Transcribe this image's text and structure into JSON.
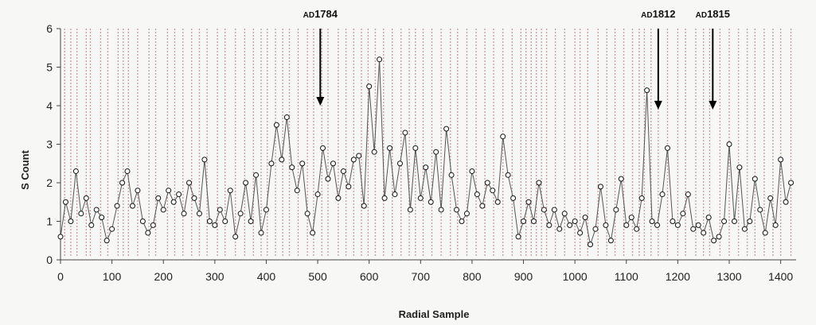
{
  "chart_data": {
    "type": "line",
    "title": "",
    "xlabel": "Radial Sample",
    "ylabel": "S Count",
    "xlim": [
      0,
      1430
    ],
    "ylim": [
      0,
      6
    ],
    "x_ticks": [
      0,
      100,
      200,
      300,
      400,
      500,
      600,
      700,
      800,
      900,
      1000,
      1100,
      1200,
      1300,
      1400
    ],
    "y_ticks": [
      0,
      1,
      2,
      3,
      4,
      5,
      6
    ],
    "grid": false,
    "colors": {
      "line": "#555555",
      "marker_edge": "#111111",
      "marker_fill": "#ffffff",
      "ring_lines": "#c9a0a0",
      "arrow": "#000000"
    },
    "ring_boundaries": [
      8,
      20,
      32,
      50,
      58,
      78,
      92,
      112,
      122,
      132,
      150,
      172,
      185,
      208,
      222,
      238,
      255,
      270,
      285,
      305,
      320,
      340,
      358,
      375,
      390,
      402,
      418,
      432,
      445,
      462,
      480,
      492,
      508,
      520,
      540,
      555,
      570,
      585,
      598,
      612,
      628,
      645,
      662,
      678,
      690,
      705,
      722,
      740,
      758,
      772,
      790,
      808,
      825,
      842,
      860,
      878,
      895,
      905,
      915,
      925,
      935,
      945,
      962,
      980,
      1000,
      1010,
      1025,
      1045,
      1062,
      1078,
      1095,
      1112,
      1125,
      1135,
      1148,
      1162,
      1180,
      1200,
      1215,
      1235,
      1250,
      1262,
      1282,
      1300,
      1318,
      1335,
      1350,
      1368,
      1385,
      1400,
      1420
    ],
    "annotations": [
      {
        "prefix": "AD",
        "year": "1784",
        "x": 505,
        "y": 4.0
      },
      {
        "prefix": "AD",
        "year": "1812",
        "x": 1162,
        "y": 3.9
      },
      {
        "prefix": "AD",
        "year": "1815",
        "x": 1268,
        "y": 3.9
      }
    ],
    "series": [
      {
        "x": [
          0,
          10,
          20,
          30,
          40,
          50,
          60,
          70,
          80,
          90,
          100,
          110,
          120,
          130,
          140,
          150,
          160,
          170,
          180,
          190,
          200,
          210,
          220,
          230,
          240,
          250,
          260,
          270,
          280,
          290,
          300,
          310,
          320,
          330,
          340,
          350,
          360,
          370,
          380,
          390,
          400,
          410,
          420,
          430,
          440,
          450,
          460,
          470,
          480,
          490,
          500,
          510,
          520,
          530,
          540,
          550,
          560,
          570,
          580,
          590,
          600,
          610,
          620,
          630,
          640,
          650,
          660,
          670,
          680,
          690,
          700,
          710,
          720,
          730,
          740,
          750,
          760,
          770,
          780,
          790,
          800,
          810,
          820,
          830,
          840,
          850,
          860,
          870,
          880,
          890,
          900,
          910,
          920,
          930,
          940,
          950,
          960,
          970,
          980,
          990,
          1000,
          1010,
          1020,
          1030,
          1040,
          1050,
          1060,
          1070,
          1080,
          1090,
          1100,
          1110,
          1120,
          1130,
          1140,
          1150,
          1160,
          1170,
          1180,
          1190,
          1200,
          1210,
          1220,
          1230,
          1240,
          1250,
          1260,
          1270,
          1280,
          1290,
          1300,
          1310,
          1320,
          1330,
          1340,
          1350,
          1360,
          1370,
          1380,
          1390,
          1400,
          1410,
          1420
        ],
        "y": [
          0.6,
          1.5,
          1.0,
          2.3,
          1.2,
          1.6,
          0.9,
          1.3,
          1.1,
          0.5,
          0.8,
          1.4,
          2.0,
          2.3,
          1.4,
          1.8,
          1.0,
          0.7,
          0.9,
          1.6,
          1.3,
          1.8,
          1.5,
          1.7,
          1.2,
          2.0,
          1.6,
          1.2,
          2.6,
          1.0,
          0.9,
          1.3,
          1.0,
          1.8,
          0.6,
          1.2,
          2.0,
          1.0,
          2.2,
          0.7,
          1.3,
          2.5,
          3.5,
          2.6,
          3.7,
          2.4,
          1.8,
          2.5,
          1.2,
          0.7,
          1.7,
          2.9,
          2.1,
          2.5,
          1.6,
          2.3,
          1.9,
          2.6,
          2.7,
          1.4,
          4.5,
          2.8,
          5.2,
          1.6,
          2.9,
          1.7,
          2.5,
          3.3,
          1.3,
          2.9,
          1.6,
          2.4,
          1.5,
          2.8,
          1.3,
          3.4,
          2.2,
          1.3,
          1.0,
          1.2,
          2.3,
          1.7,
          1.4,
          2.0,
          1.8,
          1.5,
          3.2,
          2.2,
          1.6,
          0.6,
          1.0,
          1.5,
          1.0,
          2.0,
          1.3,
          0.9,
          1.3,
          0.8,
          1.2,
          0.9,
          1.0,
          0.7,
          1.1,
          0.4,
          0.8,
          1.9,
          0.9,
          0.5,
          1.3,
          2.1,
          0.9,
          1.1,
          0.8,
          1.6,
          4.4,
          1.0,
          0.9,
          1.7,
          2.9,
          1.0,
          0.9,
          1.2,
          1.7,
          0.8,
          0.9,
          0.7,
          1.1,
          0.5,
          0.6,
          1.0,
          3.0,
          1.0,
          2.4,
          0.8,
          1.0,
          2.1,
          1.3,
          0.7,
          1.6,
          0.9,
          2.6,
          1.5,
          2.0
        ]
      }
    ]
  }
}
